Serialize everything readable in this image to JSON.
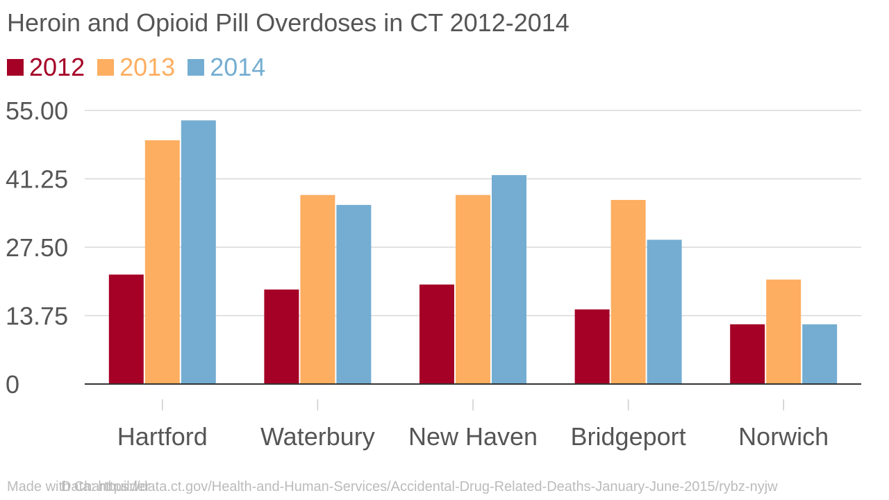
{
  "chart_data": {
    "type": "bar",
    "title": "Heroin and Opioid Pill Overdoses in CT 2012-2014",
    "categories": [
      "Hartford",
      "Waterbury",
      "New Haven",
      "Bridgeport",
      "Norwich"
    ],
    "series": [
      {
        "name": "2012",
        "color": "#a50026",
        "values": [
          22,
          19,
          20,
          15,
          12
        ]
      },
      {
        "name": "2013",
        "color": "#fdae61",
        "values": [
          49,
          38,
          38,
          37,
          21
        ]
      },
      {
        "name": "2014",
        "color": "#74add1",
        "values": [
          53,
          36,
          42,
          29,
          12
        ]
      }
    ],
    "ylim": [
      0,
      55
    ],
    "yticks": [
      "0",
      "13.75",
      "27.50",
      "41.25",
      "55.00"
    ],
    "ytick_values": [
      0,
      13.75,
      27.5,
      41.25,
      55
    ],
    "grid": true,
    "legend": "top-left"
  },
  "footer": {
    "credit": "Made with Chartbuilder",
    "source": "Data: https://data.ct.gov/Health-and-Human-Services/Accidental-Drug-Related-Deaths-January-June-2015/rybz-nyjw"
  }
}
